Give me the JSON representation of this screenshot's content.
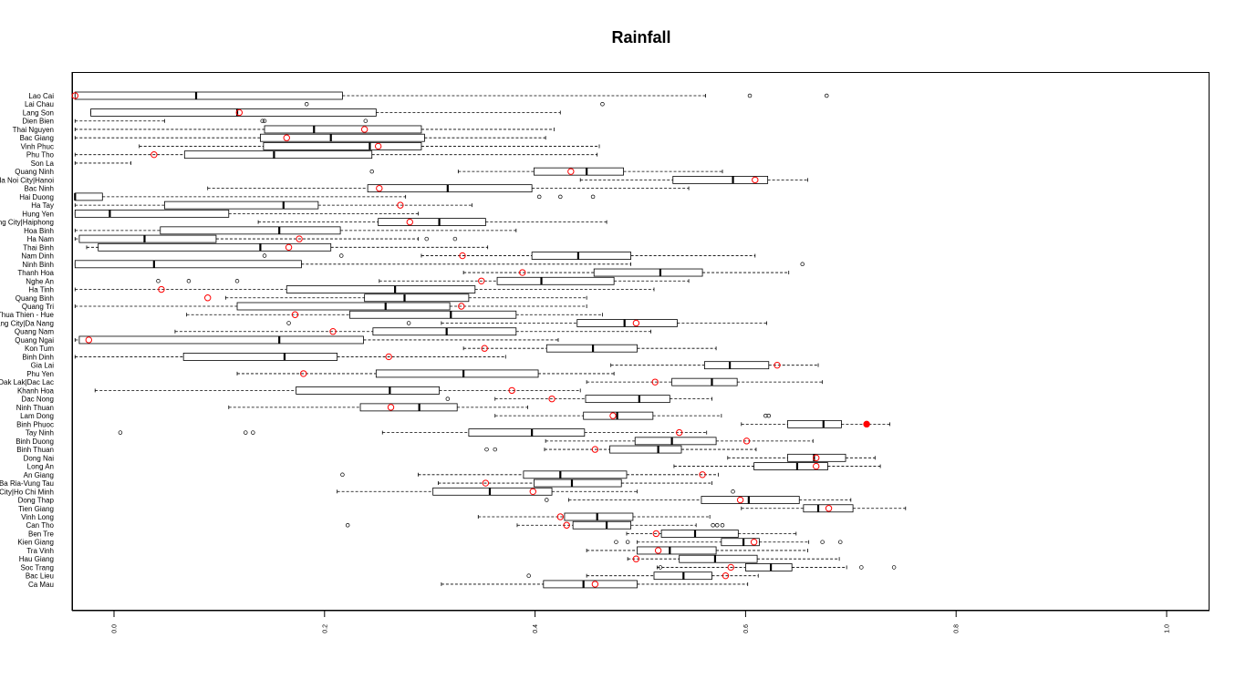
{
  "chart_data": {
    "type": "boxplot",
    "orientation": "horizontal",
    "title": "Rainfall",
    "xlabel": "",
    "ylabel": "",
    "xlim": [
      -0.02,
      1.0
    ],
    "x_ticks": [
      "0.0",
      "0.2",
      "0.4",
      "0.6",
      "0.8",
      "1.0"
    ],
    "grid": false,
    "colors": {
      "box": "#000000",
      "point": "#ff0000"
    },
    "series": [
      {
        "name": "Lao Cai",
        "whisker_low": -0.037,
        "q1": -0.037,
        "median": 0.078,
        "q3": 0.217,
        "whisker_high": 0.562,
        "outliers": [
          0.604,
          0.677
        ],
        "point": -0.037,
        "point_filled": false
      },
      {
        "name": "Lai Chau",
        "whisker_low": null,
        "q1": null,
        "median": null,
        "q3": null,
        "whisker_high": null,
        "outliers": [
          0.183,
          0.464
        ],
        "point": null,
        "point_filled": false
      },
      {
        "name": "Lang Son",
        "whisker_low": -0.022,
        "q1": -0.022,
        "median": 0.117,
        "q3": 0.249,
        "whisker_high": 0.424,
        "outliers": [],
        "point": 0.119,
        "point_filled": false
      },
      {
        "name": "Dien Bien",
        "whisker_low": -0.037,
        "q1": null,
        "median": null,
        "q3": null,
        "whisker_high": 0.048,
        "outliers": [
          0.141,
          0.143,
          0.239
        ],
        "point": null,
        "point_filled": false
      },
      {
        "name": "Thai Nguyen",
        "whisker_low": -0.037,
        "q1": 0.143,
        "median": 0.19,
        "q3": 0.292,
        "whisker_high": 0.418,
        "outliers": [],
        "point": 0.238,
        "point_filled": false
      },
      {
        "name": "Bac Giang",
        "whisker_low": -0.037,
        "q1": 0.139,
        "median": 0.206,
        "q3": 0.295,
        "whisker_high": 0.41,
        "outliers": [],
        "point": 0.164,
        "point_filled": false
      },
      {
        "name": "Vinh Phuc",
        "whisker_low": 0.024,
        "q1": 0.142,
        "median": 0.243,
        "q3": 0.292,
        "whisker_high": 0.461,
        "outliers": [],
        "point": 0.251,
        "point_filled": false
      },
      {
        "name": "Phu Tho",
        "whisker_low": -0.037,
        "q1": 0.067,
        "median": 0.152,
        "q3": 0.245,
        "whisker_high": 0.459,
        "outliers": [],
        "point": 0.038,
        "point_filled": false
      },
      {
        "name": "Son La",
        "whisker_low": -0.037,
        "q1": null,
        "median": null,
        "q3": null,
        "whisker_high": 0.016,
        "outliers": [],
        "point": null,
        "point_filled": false
      },
      {
        "name": "Quang Ninh",
        "whisker_low": 0.327,
        "q1": 0.399,
        "median": 0.449,
        "q3": 0.484,
        "whisker_high": 0.578,
        "outliers": [
          0.245
        ],
        "point": 0.434,
        "point_filled": false
      },
      {
        "name": "Ha Noi City|Hanoi",
        "whisker_low": 0.443,
        "q1": 0.531,
        "median": 0.588,
        "q3": 0.621,
        "whisker_high": 0.659,
        "outliers": [],
        "point": 0.609,
        "point_filled": false
      },
      {
        "name": "Bac Ninh",
        "whisker_low": 0.089,
        "q1": 0.241,
        "median": 0.317,
        "q3": 0.397,
        "whisker_high": 0.546,
        "outliers": [],
        "point": 0.252,
        "point_filled": false
      },
      {
        "name": "Hai Duong",
        "whisker_low": -0.037,
        "q1": -0.037,
        "median": -0.037,
        "q3": -0.011,
        "whisker_high": 0.277,
        "outliers": [
          0.404,
          0.424,
          0.455
        ],
        "point": null,
        "point_filled": false
      },
      {
        "name": "Ha Tay",
        "whisker_low": -0.037,
        "q1": 0.048,
        "median": 0.161,
        "q3": 0.194,
        "whisker_high": 0.34,
        "outliers": [],
        "point": 0.272,
        "point_filled": false
      },
      {
        "name": "Hung Yen",
        "whisker_low": -0.037,
        "q1": -0.037,
        "median": -0.004,
        "q3": 0.109,
        "whisker_high": 0.289,
        "outliers": [],
        "point": null,
        "point_filled": false
      },
      {
        "name": "Hai Phong City|Haiphong",
        "whisker_low": 0.137,
        "q1": 0.251,
        "median": 0.309,
        "q3": 0.353,
        "whisker_high": 0.468,
        "outliers": [],
        "point": 0.281,
        "point_filled": false
      },
      {
        "name": "Hoa Binh",
        "whisker_low": -0.037,
        "q1": 0.044,
        "median": 0.157,
        "q3": 0.215,
        "whisker_high": 0.382,
        "outliers": [],
        "point": null,
        "point_filled": false
      },
      {
        "name": "Ha Nam",
        "whisker_low": -0.037,
        "q1": -0.033,
        "median": 0.029,
        "q3": 0.097,
        "whisker_high": 0.289,
        "outliers": [
          0.297,
          0.324
        ],
        "point": 0.176,
        "point_filled": false
      },
      {
        "name": "Thai Binh",
        "whisker_low": -0.026,
        "q1": -0.015,
        "median": 0.139,
        "q3": 0.206,
        "whisker_high": 0.355,
        "outliers": [],
        "point": 0.166,
        "point_filled": false
      },
      {
        "name": "Nam Dinh",
        "whisker_low": 0.292,
        "q1": 0.397,
        "median": 0.441,
        "q3": 0.491,
        "whisker_high": 0.609,
        "outliers": [
          0.143,
          0.216
        ],
        "point": 0.331,
        "point_filled": false
      },
      {
        "name": "Ninh Binh",
        "whisker_low": -0.037,
        "q1": -0.037,
        "median": 0.038,
        "q3": 0.178,
        "whisker_high": 0.491,
        "outliers": [
          0.654
        ],
        "point": null,
        "point_filled": false
      },
      {
        "name": "Thanh Hoa",
        "whisker_low": 0.332,
        "q1": 0.456,
        "median": 0.519,
        "q3": 0.559,
        "whisker_high": 0.641,
        "outliers": [],
        "point": 0.388,
        "point_filled": false
      },
      {
        "name": "Nghe An",
        "whisker_low": 0.252,
        "q1": 0.364,
        "median": 0.406,
        "q3": 0.475,
        "whisker_high": 0.546,
        "outliers": [
          0.042,
          0.071,
          0.117
        ],
        "point": 0.349,
        "point_filled": false
      },
      {
        "name": "Ha Tinh",
        "whisker_low": -0.037,
        "q1": 0.164,
        "median": 0.267,
        "q3": 0.343,
        "whisker_high": 0.513,
        "outliers": [],
        "point": 0.045,
        "point_filled": false
      },
      {
        "name": "Quang Binh",
        "whisker_low": 0.106,
        "q1": 0.238,
        "median": 0.276,
        "q3": 0.337,
        "whisker_high": 0.449,
        "outliers": [],
        "point": 0.089,
        "point_filled": false
      },
      {
        "name": "Quang Tri",
        "whisker_low": -0.037,
        "q1": 0.117,
        "median": 0.258,
        "q3": 0.319,
        "whisker_high": 0.449,
        "outliers": [],
        "point": 0.33,
        "point_filled": false
      },
      {
        "name": "Thua Thien - Hue",
        "whisker_low": 0.069,
        "q1": 0.224,
        "median": 0.32,
        "q3": 0.382,
        "whisker_high": 0.464,
        "outliers": [],
        "point": 0.172,
        "point_filled": false
      },
      {
        "name": "Da Nang City|Da Nang",
        "whisker_low": 0.311,
        "q1": 0.44,
        "median": 0.485,
        "q3": 0.535,
        "whisker_high": 0.62,
        "outliers": [
          0.166,
          0.28
        ],
        "point": 0.496,
        "point_filled": false
      },
      {
        "name": "Quang Nam",
        "whisker_low": 0.058,
        "q1": 0.246,
        "median": 0.316,
        "q3": 0.382,
        "whisker_high": 0.51,
        "outliers": [],
        "point": 0.208,
        "point_filled": false
      },
      {
        "name": "Quang Ngai",
        "whisker_low": -0.037,
        "q1": -0.033,
        "median": 0.157,
        "q3": 0.237,
        "whisker_high": 0.422,
        "outliers": [],
        "point": -0.024,
        "point_filled": false
      },
      {
        "name": "Kon Tum",
        "whisker_low": 0.332,
        "q1": 0.411,
        "median": 0.455,
        "q3": 0.497,
        "whisker_high": 0.572,
        "outliers": [],
        "point": 0.352,
        "point_filled": false
      },
      {
        "name": "Binh Dinh",
        "whisker_low": -0.037,
        "q1": 0.066,
        "median": 0.162,
        "q3": 0.212,
        "whisker_high": 0.372,
        "outliers": [],
        "point": 0.261,
        "point_filled": false
      },
      {
        "name": "Gia Lai",
        "whisker_low": 0.472,
        "q1": 0.561,
        "median": 0.585,
        "q3": 0.622,
        "whisker_high": 0.669,
        "outliers": [],
        "point": 0.63,
        "point_filled": false
      },
      {
        "name": "Phu Yen",
        "whisker_low": 0.117,
        "q1": 0.249,
        "median": 0.332,
        "q3": 0.403,
        "whisker_high": 0.475,
        "outliers": [],
        "point": 0.18,
        "point_filled": false
      },
      {
        "name": "Dak Lak|Dac Lac",
        "whisker_low": 0.449,
        "q1": 0.53,
        "median": 0.568,
        "q3": 0.592,
        "whisker_high": 0.673,
        "outliers": [],
        "point": 0.514,
        "point_filled": false
      },
      {
        "name": "Khanh Hoa",
        "whisker_low": -0.018,
        "q1": 0.173,
        "median": 0.262,
        "q3": 0.309,
        "whisker_high": 0.443,
        "outliers": [],
        "point": 0.378,
        "point_filled": false
      },
      {
        "name": "Dac Nong",
        "whisker_low": 0.362,
        "q1": 0.448,
        "median": 0.499,
        "q3": 0.528,
        "whisker_high": 0.568,
        "outliers": [
          0.317
        ],
        "point": 0.416,
        "point_filled": false
      },
      {
        "name": "Ninh Thuan",
        "whisker_low": 0.109,
        "q1": 0.234,
        "median": 0.29,
        "q3": 0.326,
        "whisker_high": 0.393,
        "outliers": [],
        "point": 0.263,
        "point_filled": false
      },
      {
        "name": "Lam Dong",
        "whisker_low": 0.362,
        "q1": 0.446,
        "median": 0.478,
        "q3": 0.512,
        "whisker_high": 0.577,
        "outliers": [
          0.619,
          0.622
        ],
        "point": 0.474,
        "point_filled": false
      },
      {
        "name": "Binh Phuoc",
        "whisker_low": 0.596,
        "q1": 0.64,
        "median": 0.674,
        "q3": 0.691,
        "whisker_high": 0.737,
        "outliers": [],
        "point": 0.715,
        "point_filled": true
      },
      {
        "name": "Tay Ninh",
        "whisker_low": 0.255,
        "q1": 0.337,
        "median": 0.397,
        "q3": 0.447,
        "whisker_high": 0.563,
        "outliers": [
          0.006,
          0.125,
          0.132
        ],
        "point": 0.537,
        "point_filled": false
      },
      {
        "name": "Binh Duong",
        "whisker_low": 0.41,
        "q1": 0.495,
        "median": 0.53,
        "q3": 0.572,
        "whisker_high": 0.664,
        "outliers": [],
        "point": 0.601,
        "point_filled": false
      },
      {
        "name": "Binh Thuan",
        "whisker_low": 0.409,
        "q1": 0.471,
        "median": 0.517,
        "q3": 0.539,
        "whisker_high": 0.61,
        "outliers": [
          0.354,
          0.362
        ],
        "point": 0.457,
        "point_filled": false
      },
      {
        "name": "Dong Nai",
        "whisker_low": 0.583,
        "q1": 0.64,
        "median": 0.665,
        "q3": 0.695,
        "whisker_high": 0.723,
        "outliers": [],
        "point": 0.667,
        "point_filled": false
      },
      {
        "name": "Long An",
        "whisker_low": 0.532,
        "q1": 0.608,
        "median": 0.649,
        "q3": 0.678,
        "whisker_high": 0.728,
        "outliers": [],
        "point": 0.667,
        "point_filled": false
      },
      {
        "name": "An Giang",
        "whisker_low": 0.289,
        "q1": 0.389,
        "median": 0.424,
        "q3": 0.487,
        "whisker_high": 0.574,
        "outliers": [
          0.217
        ],
        "point": 0.559,
        "point_filled": false
      },
      {
        "name": "Ba Ria-Vung Tau",
        "whisker_low": 0.308,
        "q1": 0.399,
        "median": 0.435,
        "q3": 0.482,
        "whisker_high": 0.568,
        "outliers": [],
        "point": 0.353,
        "point_filled": false
      },
      {
        "name": "Ho Chi Minh City|Ho Chi Minh",
        "whisker_low": 0.212,
        "q1": 0.303,
        "median": 0.357,
        "q3": 0.416,
        "whisker_high": 0.497,
        "outliers": [
          0.588
        ],
        "point": 0.398,
        "point_filled": false
      },
      {
        "name": "Dong Thap",
        "whisker_low": 0.432,
        "q1": 0.558,
        "median": 0.603,
        "q3": 0.651,
        "whisker_high": 0.7,
        "outliers": [
          0.411
        ],
        "point": 0.595,
        "point_filled": false
      },
      {
        "name": "Tien Giang",
        "whisker_low": 0.596,
        "q1": 0.655,
        "median": 0.669,
        "q3": 0.702,
        "whisker_high": 0.752,
        "outliers": [],
        "point": 0.679,
        "point_filled": false
      },
      {
        "name": "Vinh Long",
        "whisker_low": 0.346,
        "q1": 0.428,
        "median": 0.459,
        "q3": 0.493,
        "whisker_high": 0.566,
        "outliers": [],
        "point": 0.424,
        "point_filled": false
      },
      {
        "name": "Can Tho",
        "whisker_low": 0.383,
        "q1": 0.436,
        "median": 0.468,
        "q3": 0.491,
        "whisker_high": 0.553,
        "outliers": [
          0.222,
          0.569,
          0.573,
          0.578
        ],
        "point": 0.43,
        "point_filled": false
      },
      {
        "name": "Ben Tre",
        "whisker_low": 0.487,
        "q1": 0.52,
        "median": 0.552,
        "q3": 0.593,
        "whisker_high": 0.648,
        "outliers": [],
        "point": 0.515,
        "point_filled": false
      },
      {
        "name": "Kien Giang",
        "whisker_low": 0.497,
        "q1": 0.577,
        "median": 0.598,
        "q3": 0.613,
        "whisker_high": 0.66,
        "outliers": [
          0.477,
          0.488,
          0.673,
          0.69
        ],
        "point": 0.608,
        "point_filled": false
      },
      {
        "name": "Tra Vinh",
        "whisker_low": 0.449,
        "q1": 0.497,
        "median": 0.528,
        "q3": 0.572,
        "whisker_high": 0.659,
        "outliers": [],
        "point": 0.517,
        "point_filled": false
      },
      {
        "name": "Hau Giang",
        "whisker_low": 0.488,
        "q1": 0.537,
        "median": 0.571,
        "q3": 0.611,
        "whisker_high": 0.689,
        "outliers": [],
        "point": 0.496,
        "point_filled": false
      },
      {
        "name": "Soc Trang",
        "whisker_low": 0.516,
        "q1": 0.6,
        "median": 0.624,
        "q3": 0.644,
        "whisker_high": 0.696,
        "outliers": [
          0.519,
          0.71,
          0.741
        ],
        "point": 0.586,
        "point_filled": false
      },
      {
        "name": "Bac Lieu",
        "whisker_low": 0.449,
        "q1": 0.513,
        "median": 0.541,
        "q3": 0.568,
        "whisker_high": 0.612,
        "outliers": [
          0.394
        ],
        "point": 0.581,
        "point_filled": false
      },
      {
        "name": "Ca Mau",
        "whisker_low": 0.311,
        "q1": 0.408,
        "median": 0.446,
        "q3": 0.497,
        "whisker_high": 0.602,
        "outliers": [],
        "point": 0.457,
        "point_filled": false
      }
    ]
  }
}
